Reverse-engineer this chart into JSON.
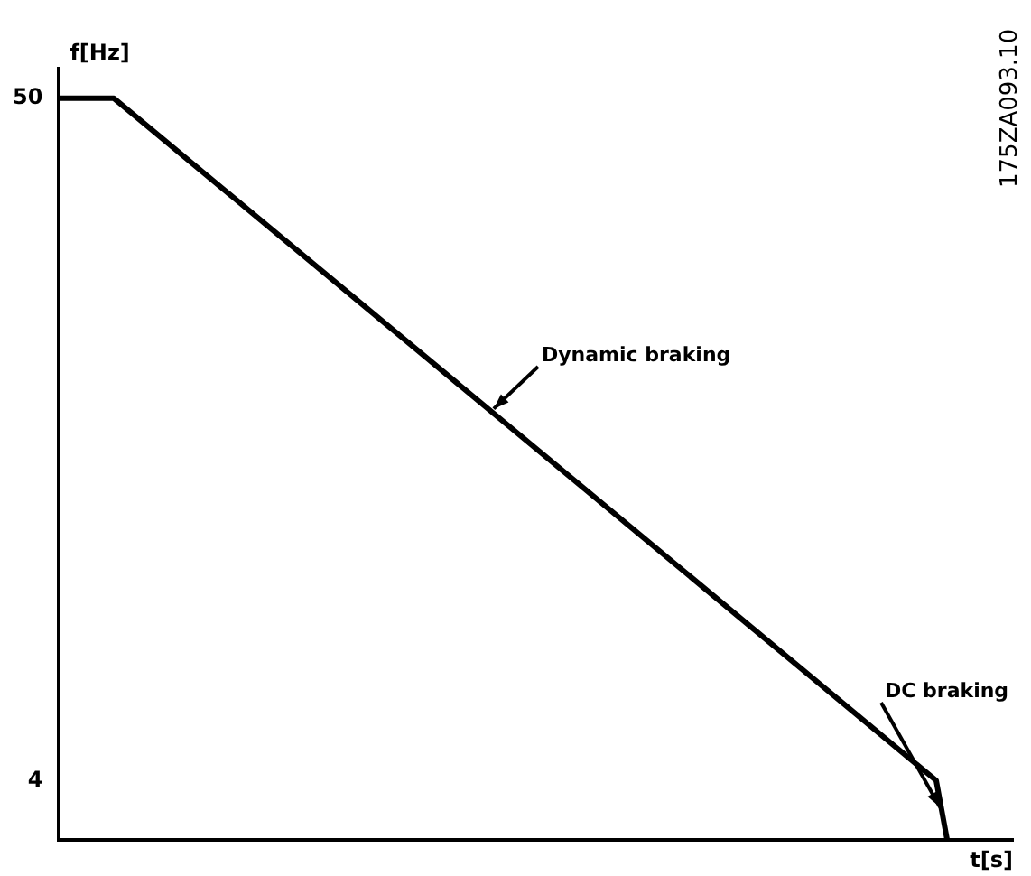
{
  "chart_data": {
    "type": "line",
    "xlabel": "t[s]",
    "ylabel": "f[Hz]",
    "categories": [
      null,
      null,
      null,
      null,
      null,
      null,
      null,
      null,
      null,
      null,
      null,
      null,
      null,
      null,
      null,
      null,
      null,
      null,
      null,
      null,
      null,
      null,
      null,
      null,
      null,
      null,
      null,
      null,
      null,
      null,
      null,
      null,
      null,
      null,
      null,
      null,
      null,
      null,
      null,
      null,
      null,
      null,
      null,
      null,
      null,
      null,
      null,
      null,
      null,
      null,
      null,
      null,
      null,
      null,
      null,
      null,
      null,
      null,
      null,
      null,
      null,
      null,
      null,
      null,
      null,
      null,
      null,
      null,
      null,
      null,
      null,
      null,
      null,
      null,
      null,
      null,
      null,
      null,
      null,
      null,
      null,
      null,
      null,
      null,
      null,
      null,
      null,
      null
    ],
    "values": [
      50,
      null,
      null,
      null,
      null,
      50,
      null,
      null,
      null,
      null,
      null,
      null,
      null,
      null,
      null,
      null,
      null,
      null,
      null,
      null,
      null,
      null,
      null,
      null,
      null,
      null,
      null,
      null,
      null,
      null,
      null,
      null,
      null,
      null,
      null,
      null,
      null,
      null,
      null,
      null,
      null,
      null,
      null,
      null,
      null,
      null,
      null,
      null,
      null,
      null,
      null,
      null,
      null,
      null,
      null,
      null,
      null,
      null,
      null,
      null,
      null,
      null,
      null,
      null,
      null,
      null,
      null,
      null,
      null,
      null,
      null,
      null,
      null,
      null,
      null,
      null,
      null,
      null,
      null,
      null,
      4,
      0,
      null,
      null,
      null,
      null,
      null,
      null
    ],
    "color": "#000000",
    "ylim": [
      0,
      52
    ],
    "yticks": [
      50,
      4
    ],
    "tick_labels": "y",
    "grid": false,
    "legend": false,
    "marker": "none",
    "line_style": "solid",
    "annotations": [
      "Dynamic braking",
      "DC braking",
      "175ZA093.10"
    ]
  }
}
